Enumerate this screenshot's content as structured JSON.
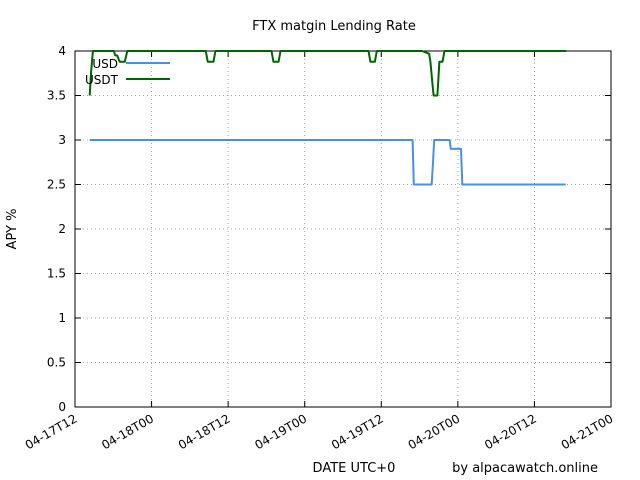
{
  "chart_data": {
    "type": "line",
    "title": "FTX matgin Lending Rate",
    "xlabel": "DATE UTC+0",
    "ylabel": "APY %",
    "credit": "by alpacawatch.online",
    "x_axis_unit": "hours since 04-17T12",
    "xlim": [
      0,
      84
    ],
    "ylim": [
      0,
      4
    ],
    "x_ticks": [
      {
        "value": 0,
        "label": "04-17T12"
      },
      {
        "value": 12,
        "label": "04-18T00"
      },
      {
        "value": 24,
        "label": "04-18T12"
      },
      {
        "value": 36,
        "label": "04-19T00"
      },
      {
        "value": 48,
        "label": "04-19T12"
      },
      {
        "value": 60,
        "label": "04-20T00"
      },
      {
        "value": 72,
        "label": "04-20T12"
      },
      {
        "value": 84,
        "label": "04-21T00"
      }
    ],
    "y_ticks": [
      {
        "value": 0,
        "label": "0"
      },
      {
        "value": 0.5,
        "label": "0.5"
      },
      {
        "value": 1,
        "label": "1"
      },
      {
        "value": 1.5,
        "label": "1.5"
      },
      {
        "value": 2,
        "label": "2"
      },
      {
        "value": 2.5,
        "label": "2.5"
      },
      {
        "value": 3,
        "label": "3"
      },
      {
        "value": 3.5,
        "label": "3.5"
      },
      {
        "value": 4,
        "label": "4"
      }
    ],
    "grid": true,
    "legend_position": "top-left",
    "series": [
      {
        "name": "USD",
        "color": "#4a90e2",
        "points": [
          [
            2.3,
            3.0
          ],
          [
            52.9,
            3.0
          ],
          [
            53.0,
            2.75
          ],
          [
            53.1,
            2.5
          ],
          [
            55.9,
            2.5
          ],
          [
            56.1,
            2.75
          ],
          [
            56.3,
            3.0
          ],
          [
            58.7,
            3.0
          ],
          [
            58.9,
            2.9
          ],
          [
            60.5,
            2.9
          ],
          [
            60.7,
            2.5
          ],
          [
            76.9,
            2.5
          ]
        ]
      },
      {
        "name": "USDT",
        "color": "#006400",
        "points": [
          [
            2.3,
            3.5
          ],
          [
            2.5,
            3.75
          ],
          [
            2.8,
            4.0
          ],
          [
            6.1,
            4.0
          ],
          [
            6.3,
            3.95
          ],
          [
            6.6,
            3.95
          ],
          [
            7.0,
            3.88
          ],
          [
            7.8,
            3.88
          ],
          [
            8.2,
            4.0
          ],
          [
            20.5,
            4.0
          ],
          [
            20.8,
            3.88
          ],
          [
            21.7,
            3.88
          ],
          [
            22.0,
            4.0
          ],
          [
            30.8,
            4.0
          ],
          [
            31.1,
            3.88
          ],
          [
            31.9,
            3.88
          ],
          [
            32.2,
            4.0
          ],
          [
            46.0,
            4.0
          ],
          [
            46.3,
            3.88
          ],
          [
            47.0,
            3.88
          ],
          [
            47.3,
            4.0
          ],
          [
            54.4,
            4.0
          ],
          [
            55.5,
            3.97
          ],
          [
            55.7,
            3.88
          ],
          [
            56.0,
            3.65
          ],
          [
            56.2,
            3.5
          ],
          [
            56.8,
            3.5
          ],
          [
            57.1,
            3.88
          ],
          [
            57.6,
            3.88
          ],
          [
            57.9,
            4.0
          ],
          [
            77.0,
            4.0
          ]
        ]
      }
    ]
  }
}
